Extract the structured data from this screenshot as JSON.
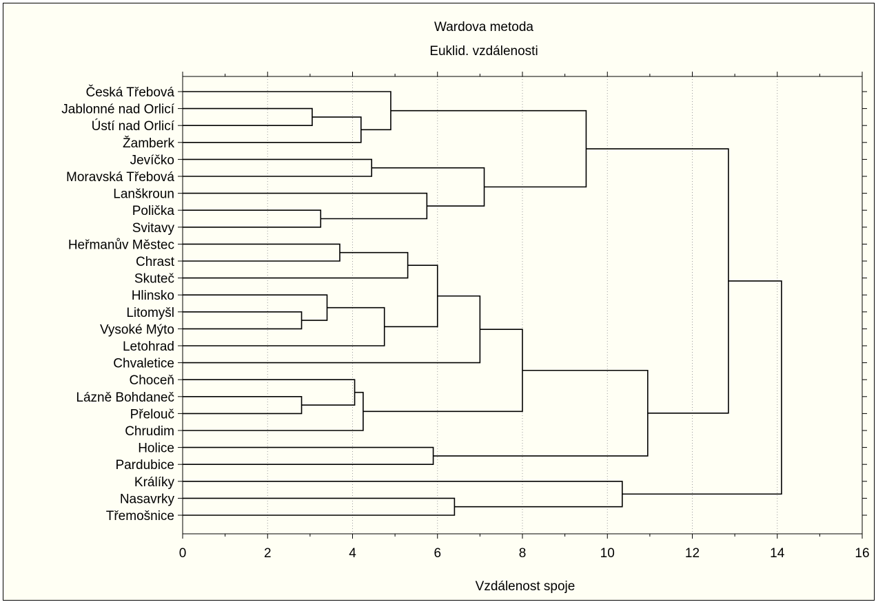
{
  "chart_data": {
    "type": "dendrogram",
    "title": "Wardova metoda",
    "subtitle": "Euklid. vzdálenosti",
    "xlabel": "Vzdálenost spoje",
    "xlim": [
      0,
      16
    ],
    "xticks": [
      0,
      2,
      4,
      6,
      8,
      10,
      12,
      14,
      16
    ],
    "grid": "vertical dotted",
    "leaves": [
      "Česká Třebová",
      "Jablonné nad Orlicí",
      "Ústí nad Orlicí",
      "Žamberk",
      "Jevíčko",
      "Moravská Třebová",
      "Lanškroun",
      "Polička",
      "Svitavy",
      "Heřmanův Městec",
      "Chrast",
      "Skuteč",
      "Hlinsko",
      "Litomyšl",
      "Vysoké Mýto",
      "Letohrad",
      "Chvaletice",
      "Choceň",
      "Lázně Bohdaneč",
      "Přelouč",
      "Chrudim",
      "Holice",
      "Pardubice",
      "Králíky",
      "Nasavrky",
      "Třemošnice"
    ],
    "merges": [
      {
        "id": "m1",
        "a": "Jablonné nad Orlicí",
        "b": "Ústí nad Orlicí",
        "height": 3.05
      },
      {
        "id": "m2",
        "a": "m1",
        "b": "Žamberk",
        "height": 4.2
      },
      {
        "id": "m3",
        "a": "Česká Třebová",
        "b": "m2",
        "height": 4.9
      },
      {
        "id": "m4",
        "a": "Jevíčko",
        "b": "Moravská Třebová",
        "height": 4.45
      },
      {
        "id": "m5",
        "a": "Polička",
        "b": "Svitavy",
        "height": 3.25
      },
      {
        "id": "m6",
        "a": "Lanškroun",
        "b": "m5",
        "height": 5.75
      },
      {
        "id": "m7",
        "a": "m4",
        "b": "m6",
        "height": 7.1
      },
      {
        "id": "m8",
        "a": "m3",
        "b": "m7",
        "height": 9.5
      },
      {
        "id": "m9",
        "a": "Heřmanův Městec",
        "b": "Chrast",
        "height": 3.7
      },
      {
        "id": "m10",
        "a": "m9",
        "b": "Skuteč",
        "height": 5.3
      },
      {
        "id": "m11",
        "a": "Litomyšl",
        "b": "Vysoké Mýto",
        "height": 2.8
      },
      {
        "id": "m12",
        "a": "Hlinsko",
        "b": "m11",
        "height": 3.4
      },
      {
        "id": "m13",
        "a": "m12",
        "b": "Letohrad",
        "height": 4.75
      },
      {
        "id": "m14",
        "a": "m10",
        "b": "m13",
        "height": 6.0
      },
      {
        "id": "m15",
        "a": "m14",
        "b": "Chvaletice",
        "height": 7.0
      },
      {
        "id": "m16",
        "a": "Lázně Bohdaneč",
        "b": "Přelouč",
        "height": 2.8
      },
      {
        "id": "m17",
        "a": "Choceň",
        "b": "m16",
        "height": 4.05
      },
      {
        "id": "m18",
        "a": "m17",
        "b": "Chrudim",
        "height": 4.25
      },
      {
        "id": "m19",
        "a": "m15",
        "b": "m18",
        "height": 8.0
      },
      {
        "id": "m20",
        "a": "Holice",
        "b": "Pardubice",
        "height": 5.9
      },
      {
        "id": "m21",
        "a": "m19",
        "b": "m20",
        "height": 10.95
      },
      {
        "id": "m22",
        "a": "m8",
        "b": "m21",
        "height": 12.85
      },
      {
        "id": "m23",
        "a": "Nasavrky",
        "b": "Třemošnice",
        "height": 6.4
      },
      {
        "id": "m24",
        "a": "Králíky",
        "b": "m23",
        "height": 10.35
      },
      {
        "id": "m25",
        "a": "m22",
        "b": "m24",
        "height": 14.1
      }
    ]
  }
}
